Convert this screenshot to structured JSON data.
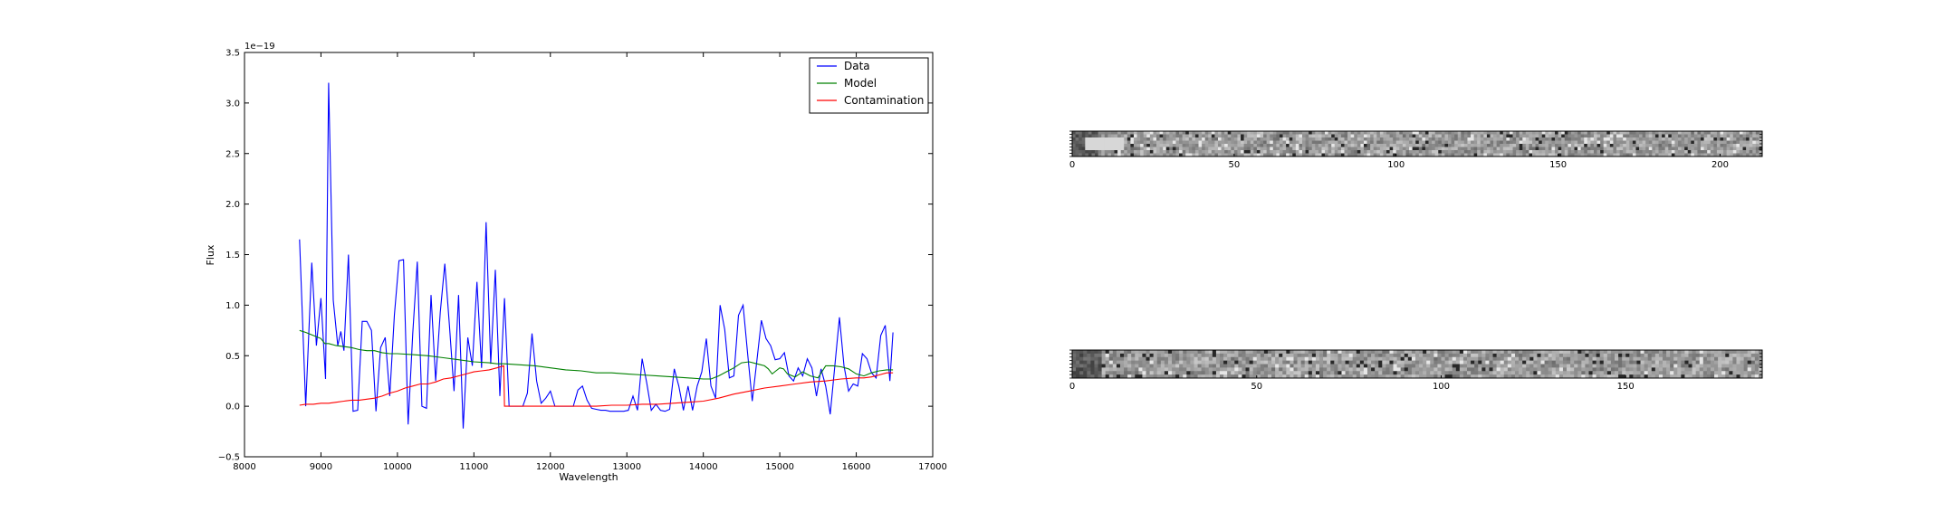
{
  "chart_data": [
    {
      "type": "line",
      "title": "",
      "xlabel": "Wavelength",
      "ylabel": "Flux",
      "offset_text": "1e−19",
      "xlim": [
        8000,
        17000
      ],
      "ylim": [
        -0.5,
        3.5
      ],
      "xticks": [
        8000,
        9000,
        10000,
        11000,
        12000,
        13000,
        14000,
        15000,
        16000,
        17000
      ],
      "xtick_labels": [
        "8000",
        "9000",
        "10000",
        "11000",
        "12000",
        "13000",
        "14000",
        "15000",
        "16000",
        "17000"
      ],
      "yticks": [
        -0.5,
        0.0,
        0.5,
        1.0,
        1.5,
        2.0,
        2.5,
        3.0,
        3.5
      ],
      "ytick_labels": [
        "−0.5",
        "0.0",
        "0.5",
        "1.0",
        "1.5",
        "2.0",
        "2.5",
        "3.0",
        "3.5"
      ],
      "grid": false,
      "legend": "top-right",
      "series": [
        {
          "name": "Data",
          "color": "#0000ff",
          "x": [
            8720,
            8800,
            8880,
            8940,
            9000,
            9060,
            9100,
            9160,
            9220,
            9260,
            9300,
            9360,
            9420,
            9480,
            9540,
            9600,
            9660,
            9720,
            9780,
            9840,
            9900,
            9960,
            10020,
            10080,
            10140,
            10200,
            10260,
            10320,
            10380,
            10440,
            10500,
            10560,
            10620,
            10680,
            10740,
            10800,
            10860,
            10920,
            10980,
            11040,
            11100,
            11160,
            11220,
            11280,
            11340,
            11400,
            11460,
            11520,
            11580,
            11640,
            11700,
            11760,
            11820,
            11880,
            11940,
            12000,
            12060,
            12120,
            12180,
            12240,
            12300,
            12360,
            12420,
            12480,
            12540,
            12600,
            12660,
            12720,
            12780,
            12840,
            12900,
            12960,
            13020,
            13080,
            13140,
            13200,
            13260,
            13320,
            13380,
            13440,
            13500,
            13560,
            13620,
            13680,
            13740,
            13800,
            13860,
            13920,
            13980,
            14040,
            14100,
            14160,
            14220,
            14280,
            14340,
            14400,
            14460,
            14520,
            14580,
            14640,
            14700,
            14760,
            14820,
            14880,
            14940,
            15000,
            15060,
            15120,
            15180,
            15240,
            15300,
            15360,
            15420,
            15480,
            15540,
            15600,
            15660,
            15720,
            15780,
            15840,
            15900,
            15960,
            16020,
            16080,
            16140,
            16200,
            16260,
            16320,
            16380,
            16440,
            16480
          ],
          "y": [
            1.65,
            0.0,
            1.42,
            0.6,
            1.07,
            0.27,
            3.2,
            1.05,
            0.6,
            0.74,
            0.55,
            1.5,
            -0.05,
            -0.04,
            0.84,
            0.84,
            0.75,
            -0.05,
            0.58,
            0.68,
            0.1,
            0.9,
            1.44,
            1.45,
            -0.18,
            0.72,
            1.43,
            0.0,
            -0.02,
            1.1,
            0.25,
            0.93,
            1.41,
            0.8,
            0.15,
            1.1,
            -0.22,
            0.68,
            0.4,
            1.23,
            0.38,
            1.82,
            0.42,
            1.35,
            0.1,
            1.07,
            0.0,
            0.0,
            0.0,
            0.0,
            0.13,
            0.72,
            0.25,
            0.03,
            0.08,
            0.15,
            0.0,
            0.0,
            0.0,
            0.0,
            0.0,
            0.16,
            0.2,
            0.06,
            -0.02,
            -0.03,
            -0.04,
            -0.04,
            -0.05,
            -0.05,
            -0.05,
            -0.05,
            -0.04,
            0.1,
            -0.04,
            0.47,
            0.23,
            -0.04,
            0.02,
            -0.04,
            -0.05,
            -0.03,
            0.37,
            0.2,
            -0.04,
            0.2,
            -0.04,
            0.2,
            0.34,
            0.67,
            0.2,
            0.08,
            1.0,
            0.76,
            0.28,
            0.3,
            0.9,
            1.0,
            0.52,
            0.05,
            0.45,
            0.85,
            0.67,
            0.6,
            0.46,
            0.47,
            0.53,
            0.3,
            0.25,
            0.38,
            0.3,
            0.47,
            0.38,
            0.1,
            0.37,
            0.2,
            -0.08,
            0.4,
            0.88,
            0.4,
            0.15,
            0.22,
            0.2,
            0.52,
            0.47,
            0.33,
            0.28,
            0.7,
            0.8,
            0.25,
            0.73
          ]
        },
        {
          "name": "Model",
          "color": "#008000",
          "x": [
            8720,
            8800,
            8900,
            9000,
            9050,
            9100,
            9200,
            9300,
            9400,
            9500,
            9600,
            9700,
            9800,
            9900,
            10000,
            10200,
            10400,
            10600,
            10800,
            11000,
            11200,
            11300,
            11400,
            11600,
            11800,
            12000,
            12200,
            12400,
            12600,
            12800,
            13000,
            13200,
            13400,
            13600,
            13800,
            14000,
            14100,
            14200,
            14300,
            14400,
            14500,
            14600,
            14700,
            14800,
            14850,
            14900,
            14950,
            15000,
            15050,
            15100,
            15200,
            15300,
            15400,
            15500,
            15600,
            15700,
            15800,
            15900,
            16000,
            16100,
            16200,
            16300,
            16400,
            16480
          ],
          "y": [
            0.75,
            0.73,
            0.7,
            0.67,
            0.62,
            0.62,
            0.6,
            0.59,
            0.58,
            0.56,
            0.55,
            0.55,
            0.53,
            0.52,
            0.52,
            0.51,
            0.5,
            0.48,
            0.46,
            0.44,
            0.43,
            0.42,
            0.42,
            0.41,
            0.4,
            0.38,
            0.36,
            0.35,
            0.33,
            0.33,
            0.32,
            0.31,
            0.3,
            0.29,
            0.28,
            0.27,
            0.27,
            0.3,
            0.34,
            0.38,
            0.43,
            0.44,
            0.42,
            0.4,
            0.37,
            0.32,
            0.35,
            0.38,
            0.37,
            0.32,
            0.29,
            0.34,
            0.3,
            0.28,
            0.4,
            0.4,
            0.39,
            0.37,
            0.32,
            0.3,
            0.33,
            0.35,
            0.36,
            0.36
          ]
        },
        {
          "name": "Contamination",
          "color": "#ff0000",
          "x": [
            8720,
            8800,
            8900,
            9000,
            9100,
            9200,
            9300,
            9400,
            9500,
            9600,
            9700,
            9800,
            9900,
            10000,
            10100,
            10200,
            10300,
            10400,
            10500,
            10600,
            10700,
            10800,
            10900,
            11000,
            11100,
            11200,
            11300,
            11390,
            11400,
            11600,
            11800,
            12000,
            12200,
            12400,
            12600,
            12800,
            13000,
            13200,
            13400,
            13600,
            13800,
            14000,
            14200,
            14400,
            14600,
            14800,
            15000,
            15200,
            15400,
            15600,
            15800,
            16000,
            16100,
            16200,
            16300,
            16400,
            16480
          ],
          "y": [
            0.01,
            0.02,
            0.02,
            0.03,
            0.03,
            0.04,
            0.05,
            0.06,
            0.06,
            0.07,
            0.08,
            0.1,
            0.13,
            0.15,
            0.18,
            0.2,
            0.22,
            0.22,
            0.24,
            0.27,
            0.28,
            0.3,
            0.32,
            0.34,
            0.35,
            0.36,
            0.38,
            0.4,
            0.0,
            0.0,
            0.0,
            0.0,
            0.0,
            0.0,
            0.0,
            0.01,
            0.01,
            0.02,
            0.02,
            0.03,
            0.04,
            0.05,
            0.08,
            0.12,
            0.15,
            0.18,
            0.2,
            0.22,
            0.24,
            0.25,
            0.27,
            0.28,
            0.28,
            0.29,
            0.31,
            0.33,
            0.33
          ]
        }
      ]
    },
    {
      "type": "heatmap",
      "title": "",
      "colormap": "gray",
      "xticks": [
        0,
        50,
        100,
        150,
        200
      ],
      "xtick_labels": [
        "0",
        "50",
        "100",
        "150",
        "200"
      ],
      "xlim": [
        0,
        213
      ],
      "ylim": [
        0,
        8
      ]
    },
    {
      "type": "heatmap",
      "title": "",
      "colormap": "gray",
      "xticks": [
        0,
        50,
        100,
        150
      ],
      "xtick_labels": [
        "0",
        "50",
        "100",
        "150"
      ],
      "xlim": [
        0,
        187
      ],
      "ylim": [
        0,
        8
      ]
    }
  ]
}
